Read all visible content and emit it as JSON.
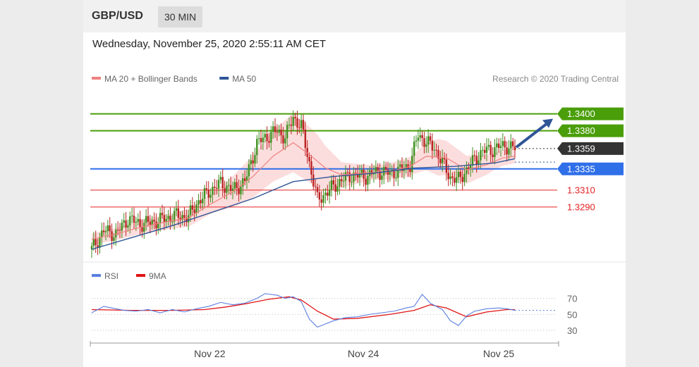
{
  "header": {
    "pair": "GBP/USD",
    "timeframe": "30 MIN"
  },
  "datetime": "Wednesday, November 25, 2020 2:55:11 AM CET",
  "colors": {
    "ma20": "#f08080",
    "ma50": "#2f5597",
    "green": "#4a9e0a",
    "blue": "#2f6fe8",
    "red": "#e32222",
    "dark": "#333333",
    "rsi": "#5b7fe0",
    "rsi_ma": "#e01414",
    "bull": "#3f8f1f",
    "bear": "#bb2222",
    "band": "#fbd7d7"
  },
  "chart_data": {
    "type": "candlestick",
    "legend": [
      {
        "label": "MA 20 + Bollinger Bands",
        "color": "#f08080"
      },
      {
        "label": "MA 50",
        "color": "#2f5597"
      }
    ],
    "watermark": "Research © 2020 Trading Central",
    "price_range": [
      1.3235,
      1.3418
    ],
    "levels": [
      {
        "label": "1.3400",
        "value": 1.34,
        "kind": "resistance",
        "color": "#4a9e0a",
        "style": "solid",
        "tag": "filled"
      },
      {
        "label": "1.3380",
        "value": 1.338,
        "kind": "resistance",
        "color": "#4a9e0a",
        "style": "solid",
        "tag": "filled"
      },
      {
        "label": "1.3359",
        "value": 1.3359,
        "kind": "last",
        "color": "#333333",
        "style": "dotted",
        "tag": "filled"
      },
      {
        "label": "1.3335",
        "value": 1.3335,
        "kind": "pivot",
        "color": "#2f6fe8",
        "style": "solid",
        "tag": "filled"
      },
      {
        "label": "1.3310",
        "value": 1.331,
        "kind": "support",
        "color": "#e32222",
        "style": "solid",
        "tag": "text"
      },
      {
        "label": "1.3290",
        "value": 1.329,
        "kind": "support",
        "color": "#e32222",
        "style": "solid",
        "tag": "text"
      }
    ],
    "forecast_arrow": {
      "from": 1.3359,
      "to": 1.3396,
      "color": "#2f5597"
    },
    "close_path": [
      [
        0,
        1.324
      ],
      [
        6,
        1.3262
      ],
      [
        12,
        1.3258
      ],
      [
        18,
        1.3276
      ],
      [
        24,
        1.327
      ],
      [
        30,
        1.3272
      ],
      [
        36,
        1.3276
      ],
      [
        42,
        1.328
      ],
      [
        48,
        1.3278
      ],
      [
        52,
        1.3294
      ],
      [
        58,
        1.3308
      ],
      [
        64,
        1.3318
      ],
      [
        70,
        1.331
      ],
      [
        76,
        1.332
      ],
      [
        82,
        1.3365
      ],
      [
        86,
        1.3372
      ],
      [
        92,
        1.338
      ],
      [
        96,
        1.3372
      ],
      [
        100,
        1.3396
      ],
      [
        104,
        1.3385
      ],
      [
        108,
        1.3342
      ],
      [
        112,
        1.3298
      ],
      [
        118,
        1.331
      ],
      [
        124,
        1.3322
      ],
      [
        130,
        1.3328
      ],
      [
        136,
        1.3326
      ],
      [
        142,
        1.3332
      ],
      [
        148,
        1.333
      ],
      [
        154,
        1.3334
      ],
      [
        158,
        1.334
      ],
      [
        162,
        1.3376
      ],
      [
        166,
        1.3366
      ],
      [
        170,
        1.336
      ],
      [
        174,
        1.3342
      ],
      [
        178,
        1.3325
      ],
      [
        182,
        1.3322
      ],
      [
        186,
        1.3334
      ],
      [
        190,
        1.3346
      ],
      [
        194,
        1.3356
      ],
      [
        198,
        1.3357
      ],
      [
        202,
        1.3361
      ],
      [
        206,
        1.3362
      ],
      [
        210,
        1.3359
      ]
    ],
    "ma20_path": [
      [
        0,
        1.3252
      ],
      [
        12,
        1.3258
      ],
      [
        24,
        1.3266
      ],
      [
        36,
        1.3272
      ],
      [
        48,
        1.3277
      ],
      [
        58,
        1.3292
      ],
      [
        70,
        1.3308
      ],
      [
        80,
        1.3326
      ],
      [
        90,
        1.335
      ],
      [
        100,
        1.3366
      ],
      [
        108,
        1.3352
      ],
      [
        116,
        1.3336
      ],
      [
        124,
        1.3328
      ],
      [
        136,
        1.333
      ],
      [
        148,
        1.3332
      ],
      [
        158,
        1.3338
      ],
      [
        166,
        1.335
      ],
      [
        176,
        1.3348
      ],
      [
        186,
        1.3334
      ],
      [
        196,
        1.334
      ],
      [
        204,
        1.3348
      ],
      [
        210,
        1.335
      ]
    ],
    "ma50_path": [
      [
        0,
        1.324
      ],
      [
        20,
        1.3254
      ],
      [
        40,
        1.3268
      ],
      [
        60,
        1.3284
      ],
      [
        80,
        1.33
      ],
      [
        100,
        1.332
      ],
      [
        120,
        1.3326
      ],
      [
        140,
        1.333
      ],
      [
        160,
        1.3336
      ],
      [
        180,
        1.3338
      ],
      [
        200,
        1.3342
      ],
      [
        210,
        1.3347
      ]
    ],
    "band_width": [
      [
        0,
        8
      ],
      [
        30,
        10
      ],
      [
        60,
        14
      ],
      [
        80,
        30
      ],
      [
        100,
        42
      ],
      [
        112,
        38
      ],
      [
        124,
        18
      ],
      [
        140,
        10
      ],
      [
        160,
        14
      ],
      [
        172,
        26
      ],
      [
        186,
        20
      ],
      [
        200,
        12
      ],
      [
        210,
        10
      ]
    ],
    "x_ticks": [
      {
        "label": "Nov 22",
        "pos": 0.255
      },
      {
        "label": "Nov 24",
        "pos": 0.583
      },
      {
        "label": "Nov 25",
        "pos": 0.872
      }
    ],
    "rsi": {
      "legend": [
        {
          "label": "RSI",
          "color": "#5b7fe0"
        },
        {
          "label": "9MA",
          "color": "#e01414"
        }
      ],
      "levels": [
        {
          "label": "70",
          "value": 70
        },
        {
          "label": "50",
          "value": 50
        },
        {
          "label": "30",
          "value": 30
        }
      ],
      "range": [
        22,
        82
      ],
      "last": 55,
      "rsi_path": [
        [
          0,
          52
        ],
        [
          6,
          60
        ],
        [
          10,
          58
        ],
        [
          16,
          55
        ],
        [
          22,
          54
        ],
        [
          28,
          56
        ],
        [
          34,
          52
        ],
        [
          40,
          56
        ],
        [
          46,
          53
        ],
        [
          52,
          57
        ],
        [
          58,
          60
        ],
        [
          64,
          65
        ],
        [
          70,
          62
        ],
        [
          76,
          64
        ],
        [
          82,
          70
        ],
        [
          86,
          76
        ],
        [
          92,
          74
        ],
        [
          96,
          70
        ],
        [
          100,
          72
        ],
        [
          104,
          66
        ],
        [
          108,
          44
        ],
        [
          112,
          34
        ],
        [
          116,
          38
        ],
        [
          120,
          42
        ],
        [
          126,
          46
        ],
        [
          132,
          47
        ],
        [
          138,
          50
        ],
        [
          144,
          52
        ],
        [
          150,
          54
        ],
        [
          156,
          58
        ],
        [
          160,
          60
        ],
        [
          164,
          75
        ],
        [
          168,
          64
        ],
        [
          174,
          56
        ],
        [
          178,
          42
        ],
        [
          182,
          36
        ],
        [
          186,
          48
        ],
        [
          190,
          54
        ],
        [
          196,
          57
        ],
        [
          202,
          58
        ],
        [
          206,
          57
        ],
        [
          210,
          55
        ]
      ],
      "ma_path": [
        [
          0,
          56
        ],
        [
          20,
          55
        ],
        [
          40,
          55
        ],
        [
          56,
          56
        ],
        [
          66,
          59
        ],
        [
          76,
          63
        ],
        [
          88,
          69
        ],
        [
          98,
          72
        ],
        [
          104,
          68
        ],
        [
          112,
          54
        ],
        [
          120,
          44
        ],
        [
          132,
          45
        ],
        [
          148,
          50
        ],
        [
          160,
          55
        ],
        [
          168,
          62
        ],
        [
          176,
          58
        ],
        [
          186,
          47
        ],
        [
          196,
          53
        ],
        [
          206,
          56
        ],
        [
          210,
          56
        ]
      ]
    }
  }
}
